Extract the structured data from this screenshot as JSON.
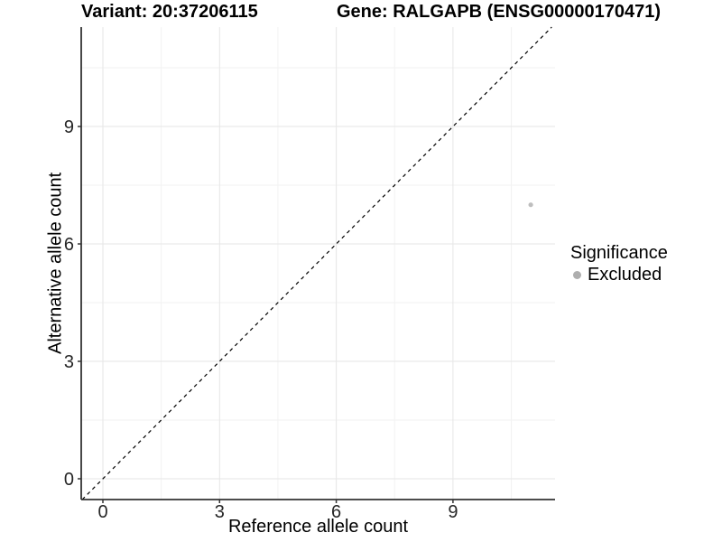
{
  "header": {
    "left_title": "Variant: 20:37206115",
    "right_title": "Gene: RALGAPB (ENSG00000170471)"
  },
  "chart_data": {
    "type": "scatter",
    "xlabel": "Reference allele count",
    "ylabel": "Alternative allele count",
    "x_ticks": [
      0,
      3,
      6,
      9
    ],
    "y_ticks": [
      0,
      3,
      6,
      9
    ],
    "xlim": [
      -0.55,
      11.65
    ],
    "ylim": [
      -0.55,
      11.55
    ],
    "grid": "major+minor",
    "identity_line": {
      "style": "dashed",
      "slope": 1,
      "intercept": 0,
      "color": "#000000"
    },
    "series": [
      {
        "name": "Excluded",
        "color": "#bebebe",
        "points": [
          {
            "x": 11,
            "y": 7
          }
        ]
      }
    ],
    "legend": {
      "position": "right",
      "title": "Significance",
      "items": [
        {
          "label": "Excluded",
          "color": "#aeaeae"
        }
      ]
    }
  },
  "style_colors": {
    "axis_line": "#333333",
    "tick_text": "#262626",
    "grid_major": "#e6e6e6",
    "grid_minor": "#f2f2f2"
  }
}
